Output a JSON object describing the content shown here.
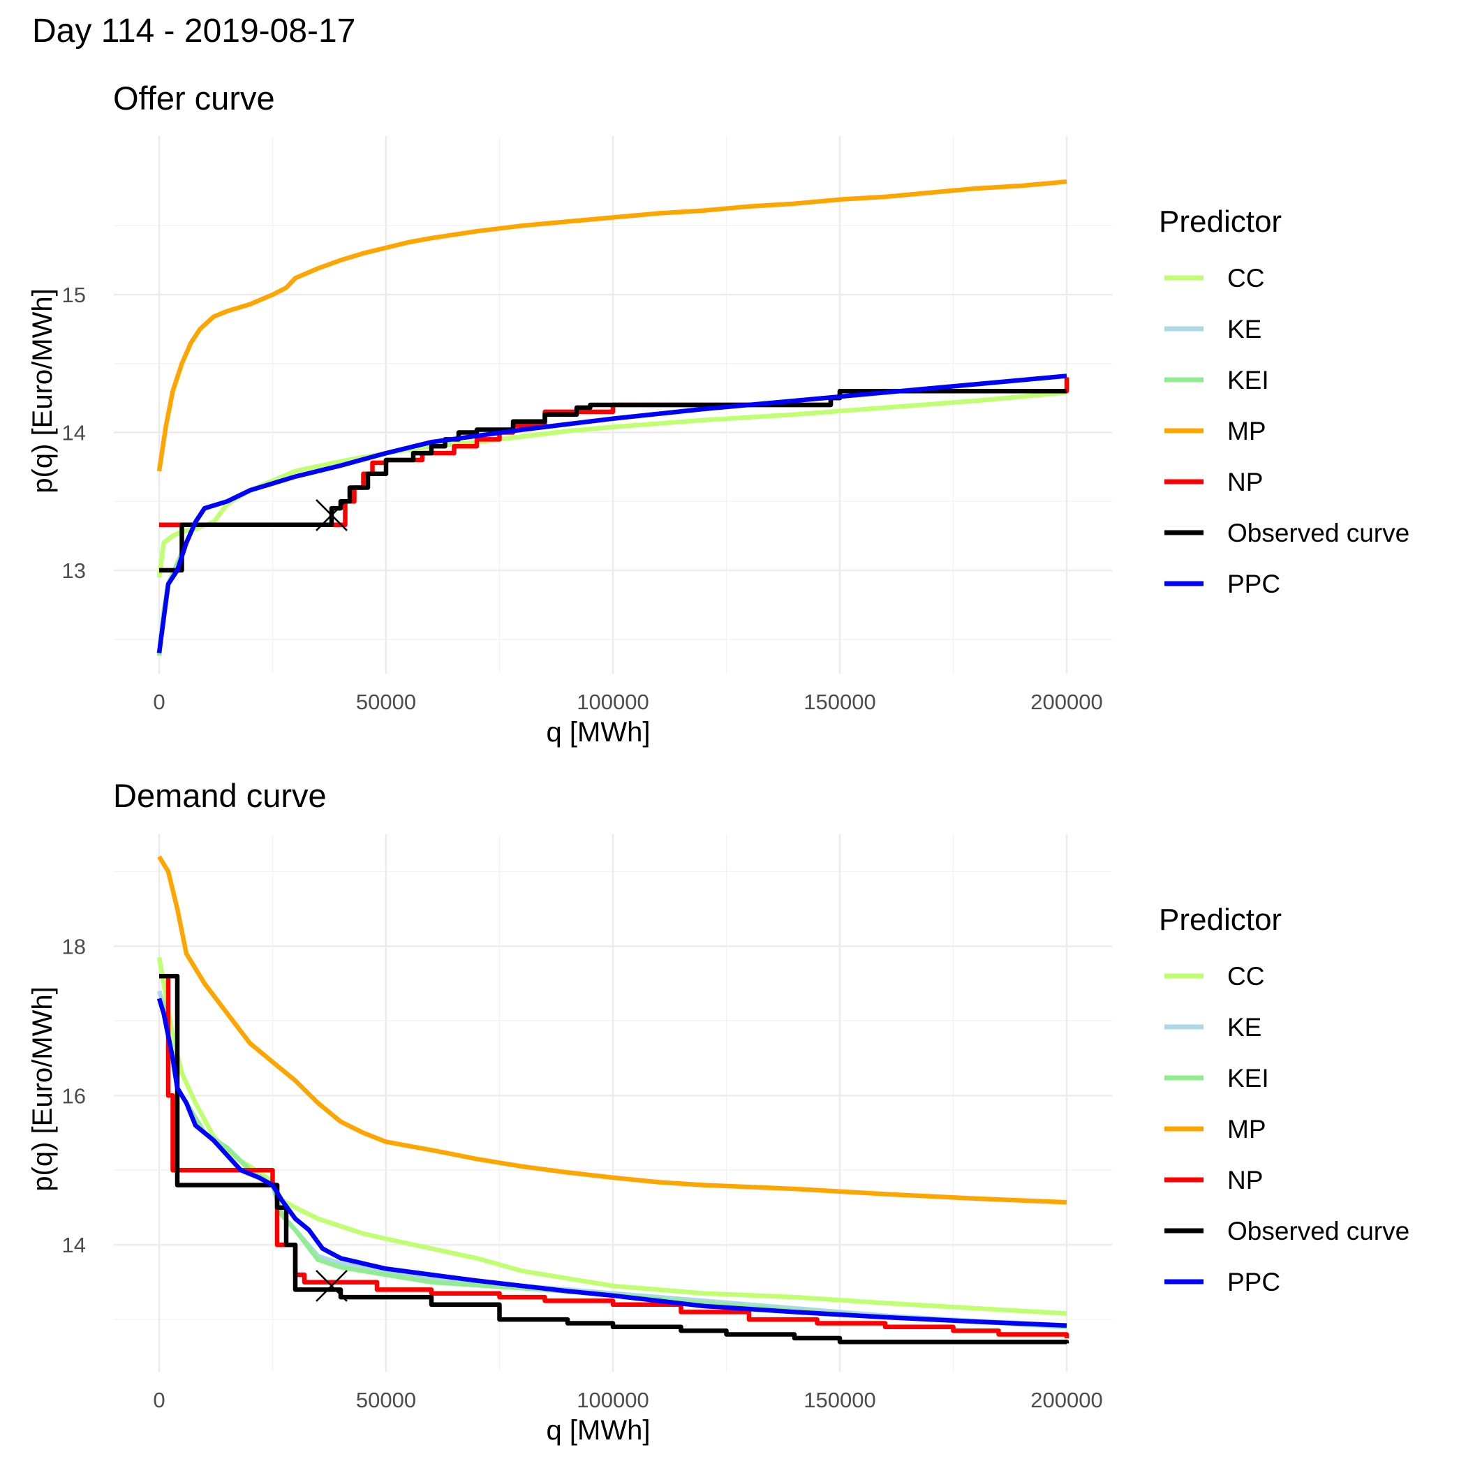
{
  "page_title": "Day  114  -  2019-08-17",
  "legend": {
    "title": "Predictor",
    "items": [
      {
        "name": "CC",
        "color": "#C0FF70"
      },
      {
        "name": "KE",
        "color": "#ADD8E6"
      },
      {
        "name": "KEI",
        "color": "#90EE90"
      },
      {
        "name": "MP",
        "color": "#FFA500"
      },
      {
        "name": "NP",
        "color": "#FF0000"
      },
      {
        "name": "Observed curve",
        "color": "#000000"
      },
      {
        "name": "PPC",
        "color": "#0000FF"
      }
    ]
  },
  "chart_data": [
    {
      "type": "line",
      "title": "Offer curve",
      "xlabel": "q [MWh]",
      "ylabel": "p(q) [Euro/MWh]",
      "xlim": [
        -10000,
        210000
      ],
      "ylim": [
        12.25,
        16.15
      ],
      "x_ticks": [
        0,
        50000,
        100000,
        150000,
        200000
      ],
      "x_tick_labels": [
        "0",
        "50000",
        "100000",
        "150000",
        "200000"
      ],
      "y_ticks": [
        13,
        14,
        15
      ],
      "y_tick_labels": [
        "13",
        "14",
        "15"
      ],
      "x_minor": [
        25000,
        75000,
        125000,
        175000
      ],
      "y_minor": [
        12.5,
        13.5,
        14.5,
        15.5
      ],
      "grid": true,
      "legend_position": "right",
      "marker": {
        "shape": "x",
        "x": 38000,
        "y": 13.4
      },
      "series": [
        {
          "name": "MP",
          "color": "#FFA500",
          "step": false,
          "x": [
            0,
            1500,
            3000,
            5000,
            7000,
            9000,
            12000,
            15000,
            20000,
            25000,
            28000,
            30000,
            35000,
            40000,
            45000,
            50000,
            55000,
            60000,
            70000,
            80000,
            90000,
            100000,
            110000,
            120000,
            130000,
            140000,
            150000,
            160000,
            170000,
            180000,
            190000,
            200000
          ],
          "y": [
            13.72,
            14.05,
            14.3,
            14.5,
            14.65,
            14.75,
            14.84,
            14.88,
            14.93,
            15.0,
            15.05,
            15.12,
            15.19,
            15.25,
            15.3,
            15.34,
            15.38,
            15.41,
            15.46,
            15.5,
            15.53,
            15.56,
            15.59,
            15.61,
            15.64,
            15.66,
            15.69,
            15.71,
            15.74,
            15.77,
            15.79,
            15.82
          ]
        },
        {
          "name": "CC",
          "color": "#C0FF70",
          "step": false,
          "x": [
            0,
            1000,
            3000,
            5000,
            8000,
            12000,
            15000,
            20000,
            25000,
            30000,
            40000,
            50000,
            60000,
            70000,
            80000,
            90000,
            100000,
            120000,
            140000,
            160000,
            180000,
            200000
          ],
          "y": [
            12.95,
            13.2,
            13.25,
            13.28,
            13.3,
            13.35,
            13.48,
            13.58,
            13.65,
            13.72,
            13.79,
            13.85,
            13.9,
            13.93,
            13.97,
            14.01,
            14.04,
            14.09,
            14.13,
            14.18,
            14.23,
            14.29
          ]
        },
        {
          "name": "KE",
          "color": "#ADD8E6",
          "step": false,
          "x": [
            0,
            1000,
            2000,
            4000,
            6000,
            8000,
            10000,
            15000,
            20000,
            30000,
            40000,
            50000,
            60000,
            80000,
            100000,
            120000,
            140000,
            160000,
            180000,
            200000
          ],
          "y": [
            12.4,
            12.7,
            12.9,
            13.05,
            13.2,
            13.35,
            13.45,
            13.5,
            13.58,
            13.68,
            13.76,
            13.85,
            13.93,
            14.02,
            14.1,
            14.17,
            14.23,
            14.29,
            14.35,
            14.41
          ]
        },
        {
          "name": "KEI",
          "color": "#90EE90",
          "step": false,
          "x": [
            0,
            1000,
            2000,
            4000,
            6000,
            8000,
            10000,
            15000,
            20000,
            30000,
            40000,
            50000,
            60000,
            80000,
            100000,
            120000,
            140000,
            160000,
            180000,
            200000
          ],
          "y": [
            12.38,
            12.7,
            12.9,
            13.05,
            13.2,
            13.35,
            13.45,
            13.5,
            13.58,
            13.68,
            13.76,
            13.85,
            13.93,
            14.02,
            14.1,
            14.17,
            14.23,
            14.29,
            14.35,
            14.41
          ]
        },
        {
          "name": "NP",
          "color": "#FF0000",
          "step": true,
          "x": [
            0,
            41000,
            43000,
            45000,
            47000,
            50000,
            58000,
            65000,
            70000,
            75000,
            78000,
            85000,
            100000,
            148000,
            150000,
            199000,
            200000
          ],
          "y": [
            13.33,
            13.5,
            13.6,
            13.7,
            13.78,
            13.8,
            13.85,
            13.9,
            13.95,
            14.0,
            14.05,
            14.15,
            14.2,
            14.25,
            14.3,
            14.3,
            14.4
          ]
        },
        {
          "name": "Observed curve",
          "color": "#000000",
          "step": true,
          "x": [
            0,
            5000,
            38000,
            40000,
            42000,
            46000,
            50000,
            56000,
            60000,
            63000,
            66000,
            70000,
            78000,
            85000,
            92000,
            95000,
            148000,
            150000,
            200000
          ],
          "y": [
            13.0,
            13.33,
            13.45,
            13.5,
            13.6,
            13.7,
            13.8,
            13.85,
            13.9,
            13.95,
            14.0,
            14.02,
            14.08,
            14.13,
            14.18,
            14.2,
            14.25,
            14.3,
            14.3
          ]
        },
        {
          "name": "PPC",
          "color": "#0000FF",
          "step": false,
          "x": [
            0,
            1000,
            2000,
            4000,
            6000,
            8000,
            10000,
            15000,
            20000,
            30000,
            40000,
            50000,
            60000,
            80000,
            100000,
            120000,
            140000,
            160000,
            180000,
            200000
          ],
          "y": [
            12.4,
            12.65,
            12.9,
            13.0,
            13.2,
            13.35,
            13.45,
            13.5,
            13.58,
            13.68,
            13.76,
            13.85,
            13.93,
            14.02,
            14.1,
            14.17,
            14.23,
            14.29,
            14.35,
            14.41
          ]
        }
      ]
    },
    {
      "type": "line",
      "title": "Demand curve",
      "xlabel": "q [MWh]",
      "ylabel": "p(q) [Euro/MWh]",
      "xlim": [
        -10000,
        210000
      ],
      "ylim": [
        12.3,
        19.5
      ],
      "x_ticks": [
        0,
        50000,
        100000,
        150000,
        200000
      ],
      "x_tick_labels": [
        "0",
        "50000",
        "100000",
        "150000",
        "200000"
      ],
      "y_ticks": [
        14,
        16,
        18
      ],
      "y_tick_labels": [
        "14",
        "16",
        "18"
      ],
      "x_minor": [
        25000,
        75000,
        125000,
        175000
      ],
      "y_minor": [
        13,
        15,
        17,
        19
      ],
      "grid": true,
      "legend_position": "right",
      "marker": {
        "shape": "x",
        "x": 38000,
        "y": 13.45
      },
      "series": [
        {
          "name": "MP",
          "color": "#FFA500",
          "step": false,
          "x": [
            0,
            2000,
            4000,
            6000,
            10000,
            15000,
            20000,
            25000,
            30000,
            35000,
            40000,
            45000,
            50000,
            60000,
            70000,
            80000,
            90000,
            100000,
            110000,
            120000,
            140000,
            160000,
            180000,
            200000
          ],
          "y": [
            19.2,
            19.0,
            18.5,
            17.9,
            17.5,
            17.1,
            16.7,
            16.45,
            16.2,
            15.9,
            15.65,
            15.5,
            15.38,
            15.27,
            15.15,
            15.05,
            14.97,
            14.9,
            14.84,
            14.8,
            14.75,
            14.68,
            14.62,
            14.57
          ]
        },
        {
          "name": "CC",
          "color": "#C0FF70",
          "step": false,
          "x": [
            0,
            1000,
            3000,
            5000,
            8000,
            12000,
            16000,
            20000,
            25000,
            27000,
            30000,
            35000,
            40000,
            45000,
            50000,
            60000,
            70000,
            80000,
            90000,
            100000,
            120000,
            140000,
            160000,
            180000,
            200000
          ],
          "y": [
            17.85,
            17.5,
            16.8,
            16.3,
            15.9,
            15.45,
            15.2,
            15.05,
            14.85,
            14.6,
            14.5,
            14.35,
            14.25,
            14.15,
            14.08,
            13.95,
            13.82,
            13.65,
            13.55,
            13.45,
            13.35,
            13.3,
            13.22,
            13.15,
            13.08
          ]
        },
        {
          "name": "KE",
          "color": "#ADD8E6",
          "step": false,
          "x": [
            0,
            1000,
            2000,
            4000,
            6000,
            8000,
            10000,
            15000,
            20000,
            25000,
            27000,
            30000,
            35000,
            40000,
            50000,
            60000,
            80000,
            100000,
            120000,
            140000,
            160000,
            180000,
            200000
          ],
          "y": [
            17.4,
            17.2,
            16.8,
            16.1,
            15.9,
            15.7,
            15.5,
            15.3,
            15.0,
            14.8,
            14.4,
            14.2,
            13.85,
            13.75,
            13.65,
            13.55,
            13.45,
            13.35,
            13.25,
            13.15,
            13.05,
            12.98,
            12.92
          ]
        },
        {
          "name": "KEI",
          "color": "#90EE90",
          "step": false,
          "x": [
            0,
            1000,
            2000,
            4000,
            6000,
            8000,
            10000,
            15000,
            20000,
            25000,
            27000,
            30000,
            35000,
            40000,
            50000,
            60000,
            80000,
            100000,
            120000,
            140000,
            160000,
            180000,
            200000
          ],
          "y": [
            17.3,
            17.2,
            16.8,
            16.1,
            15.9,
            15.7,
            15.5,
            15.3,
            15.0,
            14.8,
            14.4,
            14.2,
            13.8,
            13.7,
            13.6,
            13.5,
            13.42,
            13.33,
            13.22,
            13.12,
            13.03,
            12.97,
            12.9
          ]
        },
        {
          "name": "NP",
          "color": "#FF0000",
          "step": true,
          "x": [
            0,
            2000,
            3000,
            25000,
            26000,
            30000,
            32000,
            38000,
            48000,
            60000,
            75000,
            85000,
            100000,
            115000,
            130000,
            145000,
            160000,
            175000,
            185000,
            200000
          ],
          "y": [
            17.6,
            16.0,
            15.0,
            14.8,
            14.0,
            13.6,
            13.5,
            13.5,
            13.4,
            13.35,
            13.3,
            13.25,
            13.2,
            13.1,
            13.0,
            12.95,
            12.9,
            12.85,
            12.8,
            12.75
          ]
        },
        {
          "name": "Observed curve",
          "color": "#000000",
          "step": true,
          "x": [
            0,
            4000,
            26000,
            28000,
            30000,
            35000,
            40000,
            50000,
            60000,
            75000,
            90000,
            100000,
            115000,
            125000,
            140000,
            150000,
            200000
          ],
          "y": [
            17.6,
            14.8,
            14.5,
            14.0,
            13.4,
            13.4,
            13.3,
            13.3,
            13.2,
            13.0,
            12.95,
            12.9,
            12.85,
            12.8,
            12.75,
            12.7,
            12.68
          ]
        },
        {
          "name": "PPC",
          "color": "#0000FF",
          "step": false,
          "x": [
            0,
            1000,
            2000,
            3000,
            4000,
            6000,
            8000,
            10000,
            12000,
            15000,
            18000,
            22000,
            25000,
            27000,
            30000,
            33000,
            36000,
            40000,
            45000,
            50000,
            60000,
            70000,
            80000,
            90000,
            100000,
            110000,
            120000,
            140000,
            160000,
            180000,
            200000
          ],
          "y": [
            17.3,
            17.1,
            16.8,
            16.5,
            16.1,
            15.9,
            15.6,
            15.5,
            15.4,
            15.2,
            15.0,
            14.9,
            14.8,
            14.6,
            14.35,
            14.2,
            13.95,
            13.82,
            13.75,
            13.68,
            13.6,
            13.52,
            13.45,
            13.38,
            13.32,
            13.25,
            13.18,
            13.1,
            13.03,
            12.97,
            12.92
          ]
        }
      ]
    }
  ]
}
